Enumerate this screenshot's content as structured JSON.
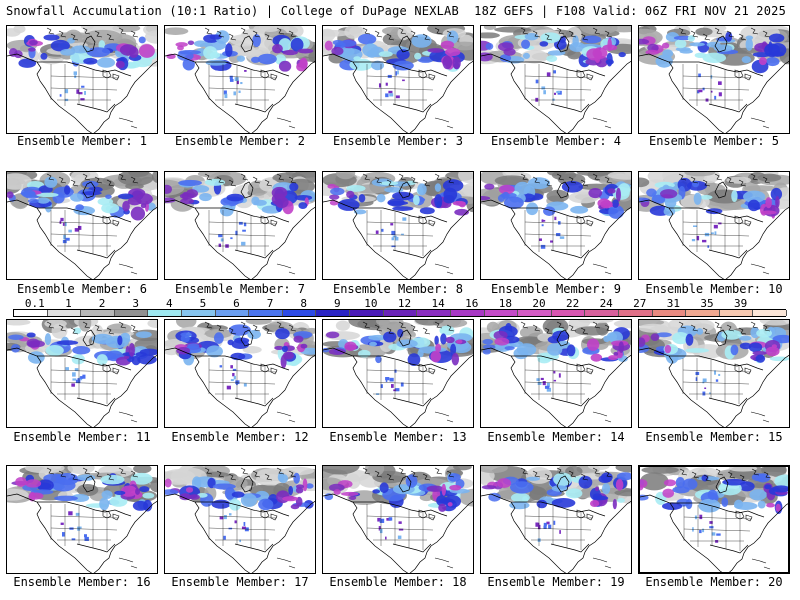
{
  "header": {
    "title": "Snowfall Accumulation (10:1 Ratio) | College of DuPage NEXLAB",
    "valid": "18Z GEFS | F108 Valid: 06Z FRI NOV 21 2025"
  },
  "panels": [
    {
      "member": 1,
      "label": "Ensemble Member: 1"
    },
    {
      "member": 2,
      "label": "Ensemble Member: 2"
    },
    {
      "member": 3,
      "label": "Ensemble Member: 3"
    },
    {
      "member": 4,
      "label": "Ensemble Member: 4"
    },
    {
      "member": 5,
      "label": "Ensemble Member: 5"
    },
    {
      "member": 6,
      "label": "Ensemble Member: 6"
    },
    {
      "member": 7,
      "label": "Ensemble Member: 7"
    },
    {
      "member": 8,
      "label": "Ensemble Member: 8"
    },
    {
      "member": 9,
      "label": "Ensemble Member: 9"
    },
    {
      "member": 10,
      "label": "Ensemble Member: 10"
    },
    {
      "member": 11,
      "label": "Ensemble Member: 11"
    },
    {
      "member": 12,
      "label": "Ensemble Member: 12"
    },
    {
      "member": 13,
      "label": "Ensemble Member: 13"
    },
    {
      "member": 14,
      "label": "Ensemble Member: 14"
    },
    {
      "member": 15,
      "label": "Ensemble Member: 15"
    },
    {
      "member": 16,
      "label": "Ensemble Member: 16"
    },
    {
      "member": 17,
      "label": "Ensemble Member: 17"
    },
    {
      "member": 18,
      "label": "Ensemble Member: 18"
    },
    {
      "member": 19,
      "label": "Ensemble Member: 19"
    },
    {
      "member": 20,
      "label": "Ensemble Member: 20"
    }
  ],
  "colorbar": {
    "ticks": [
      "0.1",
      "1",
      "2",
      "3",
      "4",
      "5",
      "6",
      "7",
      "8",
      "9",
      "10",
      "12",
      "14",
      "16",
      "18",
      "20",
      "22",
      "24",
      "27",
      "31",
      "35",
      "39"
    ],
    "colors": [
      "#ffffff",
      "#e0e0e0",
      "#b8b8b8",
      "#909090",
      "#9ee8f0",
      "#86c4ee",
      "#6a9ef0",
      "#4a74ee",
      "#2c4ae6",
      "#2a24c4",
      "#4a1ab8",
      "#6a22b8",
      "#8a2cc0",
      "#a838c4",
      "#c44ac8",
      "#d45ac4",
      "#d855b0",
      "#d8609c",
      "#e07088",
      "#e88a80",
      "#f0a890",
      "#f6c8b0",
      "#fbe6d8"
    ]
  },
  "map_colors": {
    "light_gray": "#d6d6d6",
    "gray": "#a6a6a6",
    "dark_gray": "#7a7a7a",
    "cyan": "#a8ecf4",
    "light_blue": "#7ab4f0",
    "blue": "#4a6ef0",
    "dark_blue": "#2838d8",
    "purple": "#7a2cc0",
    "magenta": "#c040c8"
  }
}
